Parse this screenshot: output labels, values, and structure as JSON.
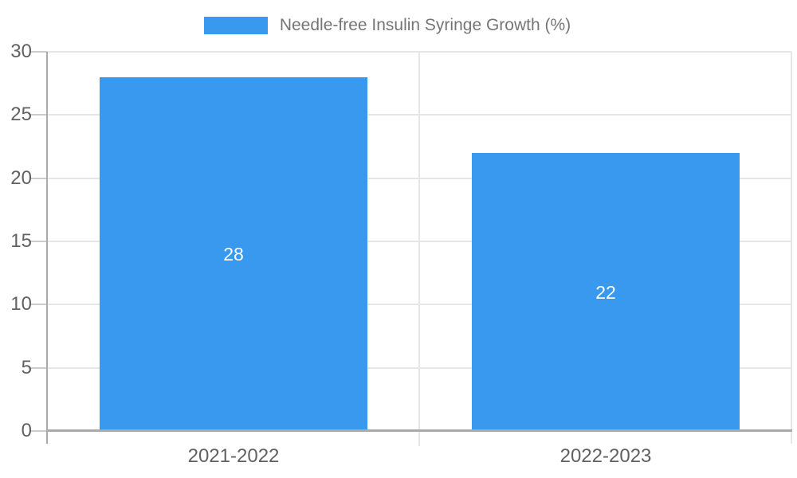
{
  "chart_data": {
    "type": "bar",
    "title": "Needle-free Insulin Syringe Growth (%)",
    "categories": [
      "2021-2022",
      "2022-2023"
    ],
    "values": [
      28,
      22
    ],
    "data_labels": [
      "28",
      "22"
    ],
    "xlabel": "",
    "ylabel": "",
    "ylim": [
      0,
      30
    ],
    "yticks": [
      0,
      5,
      10,
      15,
      20,
      25,
      30
    ],
    "grid": true,
    "legend_position": "top-center",
    "legend_entries": [
      "Needle-free Insulin Syringe Growth (%)"
    ],
    "colors": {
      "bar": "#3899EE",
      "value_label_text": "#ffffff",
      "tick_label_text": "#616161",
      "legend_text": "#757575",
      "gridline": "#e6e6e6",
      "tick_mark": "#cccccc",
      "axis_line": "#aaaaaa",
      "background": "#ffffff"
    }
  }
}
